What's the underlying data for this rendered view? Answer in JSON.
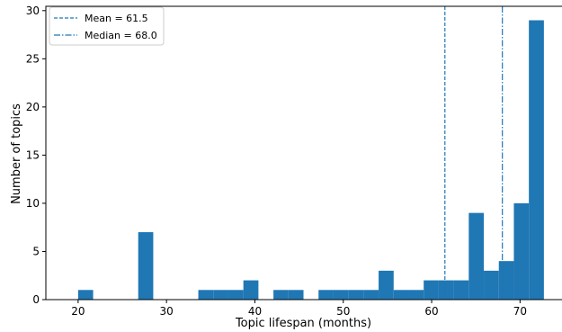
{
  "chart_data": {
    "type": "bar",
    "title": "",
    "xlabel": "Topic lifespan (months)",
    "ylabel": "Number of topics",
    "xlim": [
      16.35,
      74.85
    ],
    "ylim": [
      0,
      30.45
    ],
    "xticks": [
      20,
      30,
      40,
      50,
      60,
      70
    ],
    "yticks": [
      0,
      5,
      10,
      15,
      20,
      25,
      30
    ],
    "grid": false,
    "bar_color": "#1f77b4",
    "bins": [
      {
        "x0": 20.0,
        "x1": 21.7,
        "count": 1
      },
      {
        "x0": 21.7,
        "x1": 23.4,
        "count": 0
      },
      {
        "x0": 23.4,
        "x1": 25.1,
        "count": 0
      },
      {
        "x0": 25.1,
        "x1": 26.8,
        "count": 0
      },
      {
        "x0": 26.8,
        "x1": 28.5,
        "count": 7
      },
      {
        "x0": 28.5,
        "x1": 30.2,
        "count": 0
      },
      {
        "x0": 30.2,
        "x1": 31.9,
        "count": 0
      },
      {
        "x0": 31.9,
        "x1": 33.6,
        "count": 0
      },
      {
        "x0": 33.6,
        "x1": 35.3,
        "count": 1
      },
      {
        "x0": 35.3,
        "x1": 37.0,
        "count": 1
      },
      {
        "x0": 37.0,
        "x1": 38.7,
        "count": 1
      },
      {
        "x0": 38.7,
        "x1": 40.4,
        "count": 2
      },
      {
        "x0": 40.4,
        "x1": 42.1,
        "count": 0
      },
      {
        "x0": 42.1,
        "x1": 43.8,
        "count": 1
      },
      {
        "x0": 43.8,
        "x1": 45.5,
        "count": 1
      },
      {
        "x0": 45.5,
        "x1": 47.2,
        "count": 0
      },
      {
        "x0": 47.2,
        "x1": 48.9,
        "count": 1
      },
      {
        "x0": 48.9,
        "x1": 50.6,
        "count": 1
      },
      {
        "x0": 50.6,
        "x1": 52.3,
        "count": 1
      },
      {
        "x0": 52.3,
        "x1": 54.0,
        "count": 1
      },
      {
        "x0": 54.0,
        "x1": 55.7,
        "count": 3
      },
      {
        "x0": 55.7,
        "x1": 57.4,
        "count": 1
      },
      {
        "x0": 57.4,
        "x1": 59.1,
        "count": 1
      },
      {
        "x0": 59.1,
        "x1": 60.8,
        "count": 2
      },
      {
        "x0": 60.8,
        "x1": 62.5,
        "count": 2
      },
      {
        "x0": 62.5,
        "x1": 64.2,
        "count": 2
      },
      {
        "x0": 64.2,
        "x1": 65.9,
        "count": 9
      },
      {
        "x0": 65.9,
        "x1": 67.6,
        "count": 3
      },
      {
        "x0": 67.6,
        "x1": 69.3,
        "count": 4
      },
      {
        "x0": 69.3,
        "x1": 71.0,
        "count": 10
      },
      {
        "x0": 71.0,
        "x1": 72.7,
        "count": 29
      }
    ],
    "reference_lines": [
      {
        "label": "Mean = 61.5",
        "value": 61.5,
        "style": "dashed",
        "color": "#1f77b4"
      },
      {
        "label": "Median = 68.0",
        "value": 68.0,
        "style": "dashdot",
        "color": "#1f77b4"
      }
    ],
    "legend_position": "top-left"
  }
}
